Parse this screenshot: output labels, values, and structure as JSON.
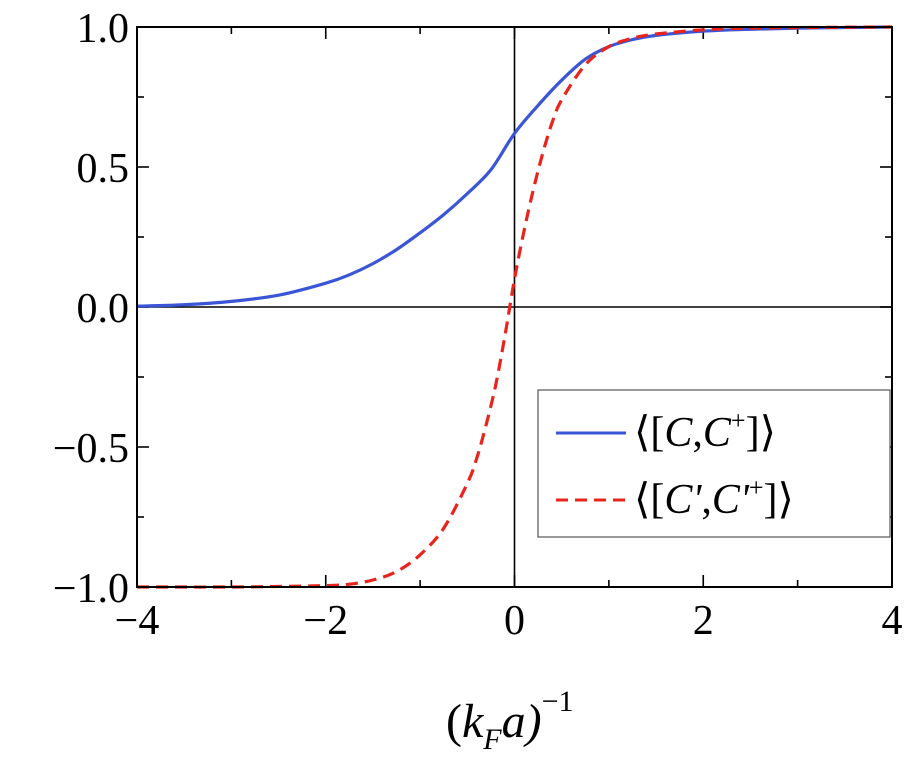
{
  "chart_data": {
    "type": "line",
    "title": "",
    "xlabel": {
      "prefix": "(",
      "main": "k",
      "subscript": "F",
      "rest": "a)",
      "superscript": "−1"
    },
    "ylabel": "",
    "xlim": [
      -4,
      4
    ],
    "ylim": [
      -1.0,
      1.0
    ],
    "x_ticks": [
      {
        "value": -4,
        "label": "−4"
      },
      {
        "value": -2,
        "label": "−2"
      },
      {
        "value": 0,
        "label": "0"
      },
      {
        "value": 2,
        "label": "2"
      },
      {
        "value": 4,
        "label": "4"
      }
    ],
    "y_ticks": [
      {
        "value": -1.0,
        "label": "−1.0"
      },
      {
        "value": -0.5,
        "label": "−0.5"
      },
      {
        "value": 0.0,
        "label": "0.0"
      },
      {
        "value": 0.5,
        "label": "0.5"
      },
      {
        "value": 1.0,
        "label": "1.0"
      }
    ],
    "grid": false,
    "zero_lines": true,
    "legend_position": "bottom-right",
    "series": [
      {
        "name": "⟨[C,C⁺]⟩",
        "legend": {
          "open": "⟨[",
          "a": "C",
          "sep": ",",
          "b": "C",
          "sup": "+",
          "close": "]⟩"
        },
        "color": "#3a55d6",
        "dash": "solid",
        "x": [
          -4.0,
          -3.5,
          -3.0,
          -2.5,
          -2.0,
          -1.75,
          -1.5,
          -1.25,
          -1.0,
          -0.75,
          -0.5,
          -0.25,
          0.0,
          0.25,
          0.5,
          0.75,
          1.0,
          1.25,
          1.5,
          2.0,
          2.5,
          3.0,
          3.5,
          4.0
        ],
        "y": [
          0.003,
          0.008,
          0.02,
          0.042,
          0.085,
          0.115,
          0.155,
          0.205,
          0.265,
          0.33,
          0.405,
          0.49,
          0.62,
          0.72,
          0.81,
          0.885,
          0.93,
          0.955,
          0.97,
          0.985,
          0.992,
          0.996,
          0.998,
          1.0
        ]
      },
      {
        "name": "⟨[C',C'⁺]⟩",
        "legend": {
          "open": "⟨[",
          "a": "C'",
          "sep": ",",
          "b": "C'",
          "sup": "+",
          "close": "]⟩"
        },
        "color": "#e8241c",
        "dash": "dashed",
        "x": [
          -4.0,
          -3.0,
          -2.5,
          -2.0,
          -1.75,
          -1.5,
          -1.25,
          -1.0,
          -0.75,
          -0.5,
          -0.4,
          -0.3,
          -0.2,
          -0.1,
          0.0,
          0.1,
          0.2,
          0.3,
          0.4,
          0.5,
          0.75,
          1.0,
          1.25,
          1.5,
          2.0,
          2.5,
          3.0,
          4.0
        ],
        "y": [
          -1.0,
          -1.0,
          -0.998,
          -0.995,
          -0.99,
          -0.975,
          -0.945,
          -0.885,
          -0.79,
          -0.63,
          -0.54,
          -0.42,
          -0.28,
          -0.1,
          0.1,
          0.27,
          0.42,
          0.55,
          0.66,
          0.74,
          0.865,
          0.93,
          0.96,
          0.975,
          0.99,
          0.996,
          0.998,
          1.0
        ]
      }
    ]
  }
}
